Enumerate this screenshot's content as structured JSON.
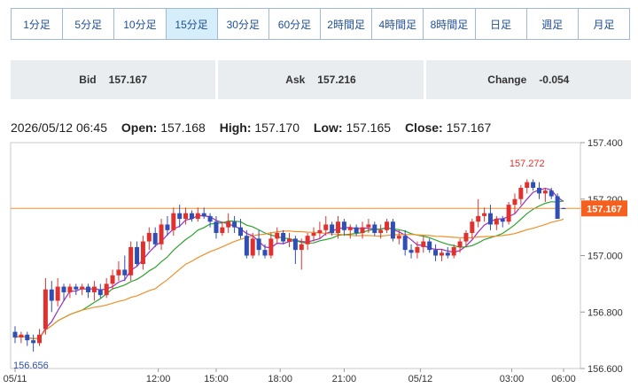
{
  "timeframes": [
    {
      "label": "1分足",
      "active": false
    },
    {
      "label": "5分足",
      "active": false
    },
    {
      "label": "10分足",
      "active": false
    },
    {
      "label": "15分足",
      "active": true
    },
    {
      "label": "30分足",
      "active": false
    },
    {
      "label": "60分足",
      "active": false
    },
    {
      "label": "2時間足",
      "active": false
    },
    {
      "label": "4時間足",
      "active": false
    },
    {
      "label": "8時間足",
      "active": false
    },
    {
      "label": "日足",
      "active": false
    },
    {
      "label": "週足",
      "active": false
    },
    {
      "label": "月足",
      "active": false
    }
  ],
  "quote": {
    "bid_label": "Bid",
    "bid": "157.167",
    "ask_label": "Ask",
    "ask": "157.216",
    "change_label": "Change",
    "change": "-0.054"
  },
  "ohlc": {
    "datetime": "2026/05/12 06:45",
    "open_label": "Open:",
    "open": "157.168",
    "high_label": "High:",
    "high": "157.170",
    "low_label": "Low:",
    "low": "157.165",
    "close_label": "Close:",
    "close": "157.167"
  },
  "colors": {
    "up": "#e0312e",
    "down": "#2f4fb4",
    "ma_short": "#9a2bc4",
    "ma_mid": "#2aa52a",
    "ma_long": "#f0902a",
    "price_line": "#f0902a",
    "price_tag": "#f5601f",
    "high_label": "#e0312e",
    "low_label": "#2f4fb4"
  },
  "chart_data": {
    "type": "candlestick",
    "y_axis": {
      "min": 156.6,
      "max": 157.4,
      "ticks": [
        "157.400",
        "157.200",
        "157.000",
        "156.800",
        "156.600"
      ]
    },
    "x_axis": {
      "labels": [
        "05/11",
        "12:00",
        "15:00",
        "18:00",
        "21:00",
        "05/12",
        "03:00",
        "06:00"
      ]
    },
    "current_price": "157.167",
    "high_marker": "157.272",
    "low_marker": "156.656",
    "candles": [
      [
        156.73,
        156.75,
        156.69,
        156.71
      ],
      [
        156.71,
        156.73,
        156.69,
        156.72
      ],
      [
        156.72,
        156.73,
        156.68,
        156.7
      ],
      [
        156.7,
        156.72,
        156.66,
        156.69
      ],
      [
        156.69,
        156.74,
        156.68,
        156.72
      ],
      [
        156.74,
        156.92,
        156.72,
        156.88
      ],
      [
        156.88,
        156.91,
        156.8,
        156.84
      ],
      [
        156.84,
        156.92,
        156.82,
        156.89
      ],
      [
        156.89,
        156.9,
        156.84,
        156.87
      ],
      [
        156.87,
        156.9,
        156.85,
        156.89
      ],
      [
        156.89,
        156.9,
        156.86,
        156.88
      ],
      [
        156.88,
        156.9,
        156.86,
        156.89
      ],
      [
        156.89,
        156.9,
        156.85,
        156.87
      ],
      [
        156.87,
        156.91,
        156.84,
        156.89
      ],
      [
        156.88,
        156.9,
        156.85,
        156.86
      ],
      [
        156.86,
        156.92,
        156.85,
        156.9
      ],
      [
        156.9,
        156.95,
        156.88,
        156.93
      ],
      [
        156.93,
        156.98,
        156.91,
        156.95
      ],
      [
        156.95,
        157.0,
        156.91,
        156.93
      ],
      [
        156.93,
        157.05,
        156.91,
        157.03
      ],
      [
        157.03,
        157.05,
        156.96,
        156.97
      ],
      [
        156.97,
        157.07,
        156.95,
        157.05
      ],
      [
        157.05,
        157.1,
        157.02,
        157.08
      ],
      [
        157.08,
        157.1,
        157.03,
        157.04
      ],
      [
        157.04,
        157.13,
        157.02,
        157.11
      ],
      [
        157.11,
        157.14,
        157.07,
        157.09
      ],
      [
        157.09,
        157.17,
        157.07,
        157.15
      ],
      [
        157.15,
        157.18,
        157.1,
        157.13
      ],
      [
        157.13,
        157.17,
        157.11,
        157.15
      ],
      [
        157.15,
        157.16,
        157.12,
        157.13
      ],
      [
        157.13,
        157.17,
        157.12,
        157.15
      ],
      [
        157.15,
        157.17,
        157.13,
        157.14
      ],
      [
        157.14,
        157.15,
        157.1,
        157.12
      ],
      [
        157.12,
        157.14,
        157.06,
        157.08
      ],
      [
        157.08,
        157.12,
        157.07,
        157.1
      ],
      [
        157.1,
        157.15,
        157.08,
        157.12
      ],
      [
        157.12,
        157.14,
        157.08,
        157.1
      ],
      [
        157.1,
        157.13,
        157.06,
        157.07
      ],
      [
        157.07,
        157.09,
        156.99,
        157.0
      ],
      [
        157.0,
        157.08,
        156.99,
        157.06
      ],
      [
        157.06,
        157.09,
        157.0,
        157.02
      ],
      [
        157.02,
        157.04,
        156.99,
        157.0
      ],
      [
        157.0,
        157.08,
        156.99,
        157.06
      ],
      [
        157.06,
        157.1,
        157.04,
        157.08
      ],
      [
        157.08,
        157.09,
        157.04,
        157.05
      ],
      [
        157.05,
        157.08,
        157.03,
        157.06
      ],
      [
        157.06,
        157.07,
        156.97,
        157.02
      ],
      [
        157.02,
        157.06,
        156.95,
        157.04
      ],
      [
        157.04,
        157.08,
        157.02,
        157.07
      ],
      [
        157.07,
        157.1,
        157.05,
        157.08
      ],
      [
        157.08,
        157.12,
        157.06,
        157.09
      ],
      [
        157.09,
        157.14,
        157.07,
        157.11
      ],
      [
        157.11,
        157.12,
        157.07,
        157.08
      ],
      [
        157.08,
        157.14,
        157.06,
        157.12
      ],
      [
        157.12,
        157.13,
        157.07,
        157.09
      ],
      [
        157.09,
        157.11,
        157.06,
        157.1
      ],
      [
        157.1,
        157.11,
        157.07,
        157.08
      ],
      [
        157.08,
        157.12,
        157.06,
        157.1
      ],
      [
        157.1,
        157.13,
        157.08,
        157.11
      ],
      [
        157.11,
        157.12,
        157.07,
        157.08
      ],
      [
        157.08,
        157.11,
        157.06,
        157.09
      ],
      [
        157.09,
        157.13,
        157.08,
        157.12
      ],
      [
        157.12,
        157.13,
        157.05,
        157.06
      ],
      [
        157.06,
        157.09,
        157.04,
        157.07
      ],
      [
        157.07,
        157.09,
        157.0,
        157.02
      ],
      [
        157.02,
        157.04,
        156.99,
        157.01
      ],
      [
        157.01,
        157.05,
        156.99,
        157.03
      ],
      [
        157.03,
        157.07,
        157.01,
        157.05
      ],
      [
        157.05,
        157.06,
        157.01,
        157.02
      ],
      [
        157.02,
        157.04,
        156.98,
        157.0
      ],
      [
        157.0,
        157.02,
        156.98,
        157.01
      ],
      [
        157.01,
        157.03,
        156.99,
        157.0
      ],
      [
        157.0,
        157.04,
        156.99,
        157.03
      ],
      [
        157.03,
        157.06,
        157.01,
        157.05
      ],
      [
        157.05,
        157.09,
        157.03,
        157.08
      ],
      [
        157.08,
        157.13,
        157.06,
        157.12
      ],
      [
        157.12,
        157.2,
        157.1,
        157.14
      ],
      [
        157.14,
        157.17,
        157.12,
        157.15
      ],
      [
        157.15,
        157.18,
        157.09,
        157.11
      ],
      [
        157.11,
        157.14,
        157.09,
        157.13
      ],
      [
        157.13,
        157.14,
        157.1,
        157.12
      ],
      [
        157.12,
        157.19,
        157.11,
        157.18
      ],
      [
        157.18,
        157.22,
        157.15,
        157.2
      ],
      [
        157.2,
        157.25,
        157.18,
        157.24
      ],
      [
        157.24,
        157.27,
        157.22,
        157.26
      ],
      [
        157.26,
        157.27,
        157.23,
        157.24
      ],
      [
        157.24,
        157.26,
        157.2,
        157.22
      ],
      [
        157.22,
        157.24,
        157.19,
        157.23
      ],
      [
        157.23,
        157.24,
        157.2,
        157.21
      ],
      [
        157.21,
        157.22,
        157.13,
        157.13
      ],
      [
        157.168,
        157.17,
        157.165,
        157.167
      ]
    ]
  }
}
